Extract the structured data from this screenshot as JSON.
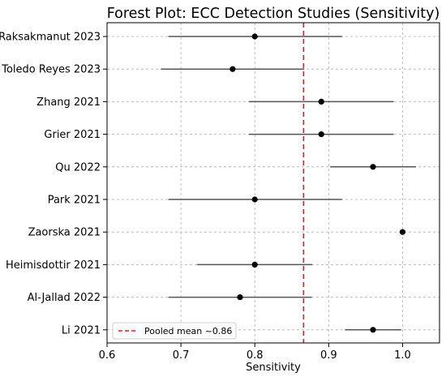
{
  "chart_data": {
    "type": "scatter",
    "title": "Forest Plot: ECC Detection Studies (Sensitivity)",
    "xlabel": "Sensitivity",
    "ylabel": "",
    "xlim": [
      0.6,
      1.05
    ],
    "xticks": [
      "0.6",
      "0.7",
      "0.8",
      "0.9",
      "1.0"
    ],
    "grid": true,
    "legend_placement": "lower-left",
    "studies": [
      {
        "name": "Raksakmanut 2023",
        "estimate": 0.8,
        "ci_low": 0.683,
        "ci_high": 0.918
      },
      {
        "name": "Toledo Reyes 2023",
        "estimate": 0.77,
        "ci_low": 0.673,
        "ci_high": 0.867
      },
      {
        "name": "Zhang 2021",
        "estimate": 0.89,
        "ci_low": 0.792,
        "ci_high": 0.988
      },
      {
        "name": "Grier 2021",
        "estimate": 0.89,
        "ci_low": 0.792,
        "ci_high": 0.988
      },
      {
        "name": "Qu 2022",
        "estimate": 0.96,
        "ci_low": 0.902,
        "ci_high": 1.018
      },
      {
        "name": "Park 2021",
        "estimate": 0.8,
        "ci_low": 0.683,
        "ci_high": 0.918
      },
      {
        "name": "Zaorska 2021",
        "estimate": 1.0,
        "ci_low": 1.0,
        "ci_high": 1.0
      },
      {
        "name": "Heimisdottir 2021",
        "estimate": 0.8,
        "ci_low": 0.722,
        "ci_high": 0.878
      },
      {
        "name": "Al-Jallad 2022",
        "estimate": 0.78,
        "ci_low": 0.683,
        "ci_high": 0.877
      },
      {
        "name": "Li 2021",
        "estimate": 0.96,
        "ci_low": 0.922,
        "ci_high": 0.998
      }
    ],
    "reference_line": {
      "value": 0.866,
      "label": "Pooled mean ~0.86",
      "color": "#d62728"
    },
    "colors": {
      "point": "#000000",
      "ci_line": "#555555",
      "grid": "#b0b0b0"
    }
  }
}
